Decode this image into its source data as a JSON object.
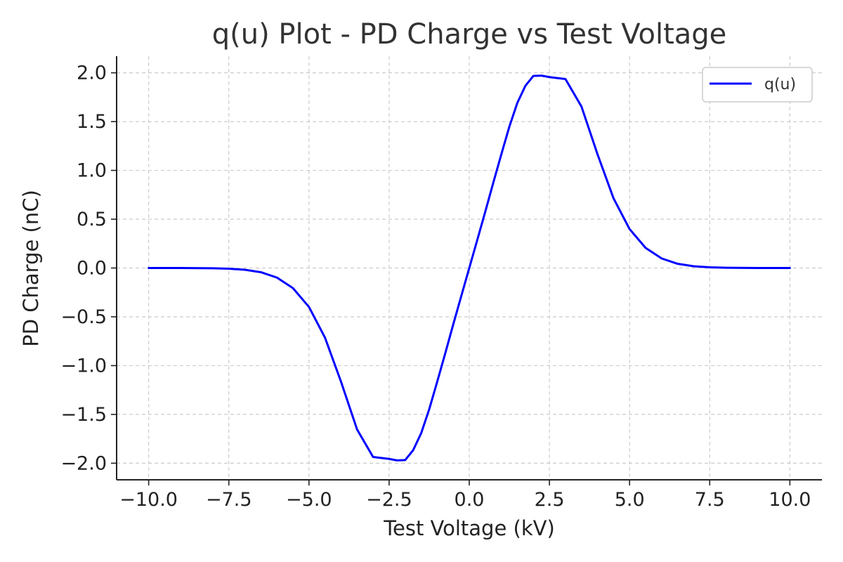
{
  "chart_data": {
    "type": "line",
    "title": "q(u) Plot - PD Charge vs Test Voltage",
    "xlabel": "Test Voltage (kV)",
    "ylabel": "PD Charge (nC)",
    "xlim": [
      -11.0,
      11.0
    ],
    "ylim": [
      -2.17,
      2.17
    ],
    "xticks": [
      -10.0,
      -7.5,
      -5.0,
      -2.5,
      0.0,
      2.5,
      5.0,
      7.5,
      10.0
    ],
    "xtick_labels": [
      "−10.0",
      "−7.5",
      "−5.0",
      "−2.5",
      "0.0",
      "2.5",
      "5.0",
      "7.5",
      "10.0"
    ],
    "yticks": [
      -2.0,
      -1.5,
      -1.0,
      -0.5,
      0.0,
      0.5,
      1.0,
      1.5,
      2.0
    ],
    "ytick_labels": [
      "−2.0",
      "−1.5",
      "−1.0",
      "−0.5",
      "0.0",
      "0.5",
      "1.0",
      "1.5",
      "2.0"
    ],
    "grid": true,
    "legend_position": "top-right",
    "series": [
      {
        "name": "q(u)",
        "color": "#0000ff",
        "x": [
          -10,
          -9,
          -8,
          -7.5,
          -7,
          -6.5,
          -6,
          -5.5,
          -5,
          -4.5,
          -4,
          -3.5,
          -3,
          -2.5,
          -2.25,
          -2,
          -1.75,
          -1.5,
          -1.25,
          -1,
          -0.75,
          -0.5,
          -0.25,
          0,
          0.25,
          0.5,
          0.75,
          1,
          1.25,
          1.5,
          1.75,
          2,
          2.25,
          2.5,
          3,
          3.5,
          4,
          4.5,
          5,
          5.5,
          6,
          6.5,
          7,
          7.5,
          8,
          9,
          10
        ],
        "y": [
          -0.0,
          -0.0,
          -0.003,
          -0.007,
          -0.018,
          -0.043,
          -0.098,
          -0.206,
          -0.399,
          -0.714,
          -1.165,
          -1.654,
          -1.936,
          -1.956,
          -1.971,
          -1.968,
          -1.866,
          -1.692,
          -1.448,
          -1.165,
          -0.875,
          -0.578,
          -0.288,
          0.0,
          0.288,
          0.578,
          0.875,
          1.165,
          1.448,
          1.692,
          1.866,
          1.968,
          1.971,
          1.956,
          1.936,
          1.654,
          1.165,
          0.714,
          0.399,
          0.206,
          0.098,
          0.043,
          0.018,
          0.007,
          0.003,
          0.0,
          0.0
        ]
      }
    ]
  }
}
